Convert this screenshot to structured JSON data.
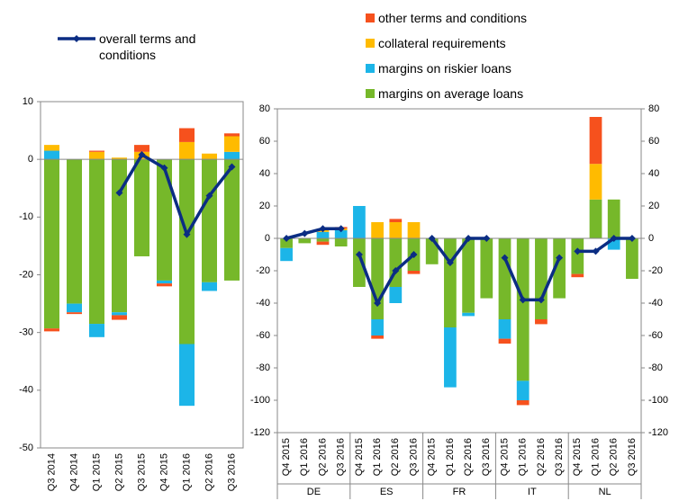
{
  "chart_data": [
    {
      "type": "bar",
      "categories": [
        "Q3 2014",
        "Q4 2014",
        "Q1 2015",
        "Q2 2015",
        "Q3 2015",
        "Q4 2015",
        "Q1 2016",
        "Q2 2016",
        "Q3 2016"
      ],
      "ylim": [
        -50,
        10
      ],
      "yticks": [
        -50,
        -40,
        -30,
        -20,
        -10,
        0,
        10
      ],
      "series": [
        {
          "color": "#76b82a",
          "values": [
            -29.3,
            -25,
            -28.5,
            -26.5,
            -16.8,
            -21,
            -32,
            -21.3,
            -21
          ]
        },
        {
          "color": "#1cb5e8",
          "values": [
            1.5,
            -1.5,
            -2.3,
            -0.5,
            0,
            -0.5,
            -10.7,
            -1.5,
            1.3
          ]
        },
        {
          "color": "#ffbb00",
          "values": [
            1,
            0,
            1.3,
            0.3,
            1.3,
            0,
            3,
            1,
            2.7
          ]
        },
        {
          "color": "#f6511d",
          "values": [
            -0.5,
            -0.3,
            0.2,
            -0.8,
            1.2,
            -0.5,
            2.4,
            0,
            0.5
          ]
        },
        {
          "name": "overall terms and conditions",
          "type": "line",
          "color": "#0b2d83",
          "values": [
            null,
            null,
            null,
            -5.8,
            0.8,
            -1.5,
            -13,
            -6.3,
            -1.3
          ]
        }
      ]
    },
    {
      "type": "bar",
      "groups": [
        "DE",
        "ES",
        "FR",
        "IT",
        "NL"
      ],
      "categories": [
        "Q4 2015",
        "Q1 2016",
        "Q2 2016",
        "Q3 2016",
        "Q4 2015",
        "Q1 2016",
        "Q2 2016",
        "Q3 2016",
        "Q4 2015",
        "Q1 2016",
        "Q2 2016",
        "Q3 2016",
        "Q4 2015",
        "Q1 2016",
        "Q2 2016",
        "Q3 2016",
        "Q4 2015",
        "Q1 2016",
        "Q2 2016",
        "Q3 2016"
      ],
      "ylim": [
        -120,
        80
      ],
      "yticks": [
        -120,
        -100,
        -80,
        -60,
        -40,
        -20,
        0,
        20,
        40,
        60,
        80
      ],
      "y2lim": [
        -120,
        80
      ],
      "y2ticks": [
        -120,
        -100,
        -80,
        -60,
        -40,
        -20,
        0,
        20,
        40,
        60,
        80
      ],
      "series": [
        {
          "name": "margins on average loans",
          "color": "#76b82a",
          "values": [
            -6,
            -3,
            -2,
            -5,
            -30,
            -50,
            -30,
            -20,
            -16,
            -55,
            -46,
            -37,
            -50,
            -88,
            -50,
            -37,
            -22,
            24,
            24,
            -25
          ]
        },
        {
          "name": "margins on riskier loans",
          "color": "#1cb5e8",
          "values": [
            -8,
            0,
            4,
            5,
            20,
            -10,
            -10,
            0,
            0,
            -37,
            -2,
            0,
            -12,
            -12,
            0,
            0,
            0,
            0,
            -7,
            0
          ]
        },
        {
          "name": "collateral requirements",
          "color": "#ffbb00",
          "values": [
            0,
            0,
            2,
            1,
            0,
            10,
            10,
            10,
            0,
            0,
            0,
            0,
            0,
            0,
            0,
            0,
            0,
            22,
            0,
            0
          ]
        },
        {
          "name": "other terms and conditions",
          "color": "#f6511d",
          "values": [
            0,
            0,
            -2,
            1,
            0,
            -2,
            2,
            -2,
            0,
            0,
            0,
            0,
            -3,
            -3,
            -3,
            0,
            -2,
            29,
            0,
            0
          ]
        },
        {
          "type": "line",
          "color": "#0b2d83",
          "values": [
            0,
            3,
            6,
            6,
            -10,
            -40,
            -20,
            -10,
            0,
            -15,
            0,
            0,
            -12,
            -38,
            -38,
            -12,
            -8,
            -8,
            0,
            0
          ]
        }
      ]
    }
  ]
}
